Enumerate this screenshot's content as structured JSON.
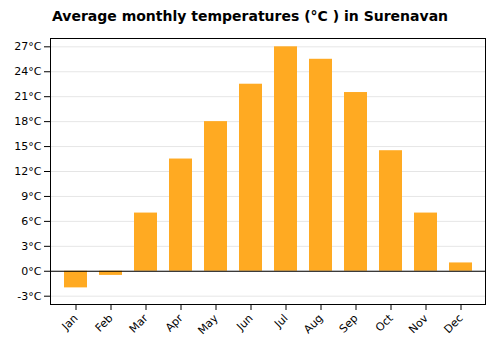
{
  "chart_data": {
    "type": "bar",
    "title": "Average monthly temperatures (°C ) in Surenavan",
    "categories": [
      "Jan",
      "Feb",
      "Mar",
      "Apr",
      "May",
      "Jun",
      "Jul",
      "Aug",
      "Sep",
      "Oct",
      "Nov",
      "Dec"
    ],
    "values": [
      -2.0,
      -0.5,
      7.0,
      13.5,
      18.0,
      22.5,
      27.0,
      25.5,
      21.5,
      14.5,
      7.0,
      1.0
    ],
    "color": "#FFAA22",
    "ylim": [
      -4,
      28
    ],
    "yticks": [
      {
        "value": -3,
        "label": "-3°C"
      },
      {
        "value": 0,
        "label": "0°C"
      },
      {
        "value": 3,
        "label": "3°C"
      },
      {
        "value": 6,
        "label": "6°C"
      },
      {
        "value": 9,
        "label": "9°C"
      },
      {
        "value": 12,
        "label": "12°C"
      },
      {
        "value": 15,
        "label": "15°C"
      },
      {
        "value": 18,
        "label": "18°C"
      },
      {
        "value": 21,
        "label": "21°C"
      },
      {
        "value": 24,
        "label": "24°C"
      },
      {
        "value": 27,
        "label": "27°C"
      }
    ],
    "grid": true
  }
}
